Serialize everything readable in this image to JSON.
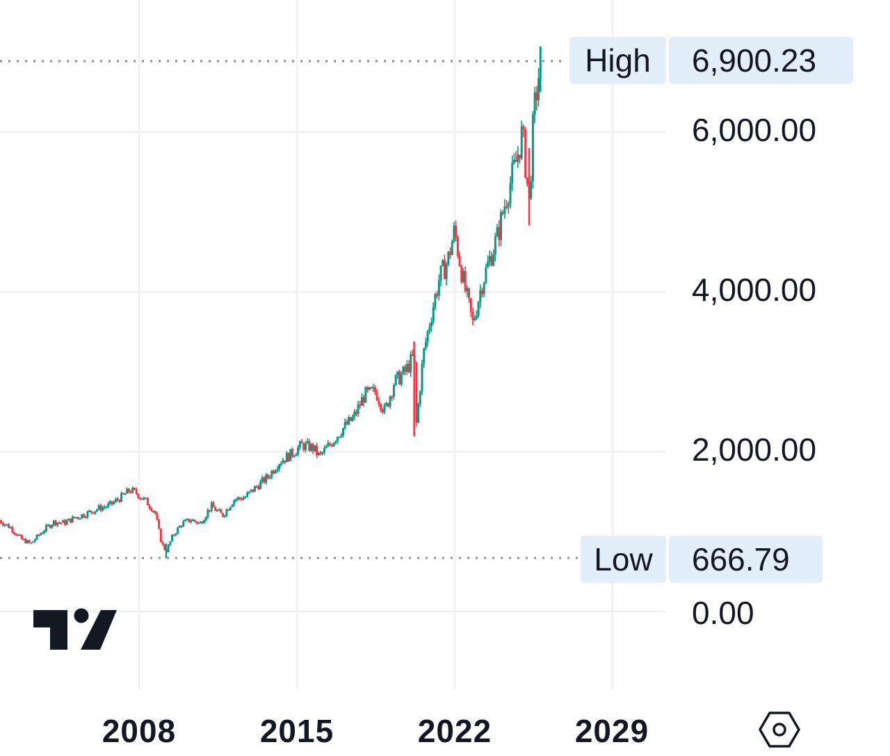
{
  "chart_data": {
    "type": "candlestick",
    "title": "",
    "xlabel": "",
    "ylabel": "",
    "x_ticks": [
      "2008",
      "2015",
      "2022",
      "2029"
    ],
    "y_ticks": [
      "6,000.00",
      "4,000.00",
      "2,000.00",
      "0.00"
    ],
    "ylim": [
      0,
      6900.23
    ],
    "xlim": [
      2001.8,
      2031
    ],
    "grid": true,
    "legend": null,
    "annotations": {
      "high": {
        "label": "High",
        "value": "6,900.23"
      },
      "low": {
        "label": "Low",
        "value": "666.79"
      }
    },
    "up_color": "#089981",
    "down_color": "#f23645",
    "series": [
      {
        "name": "close",
        "x": [
          2001.8,
          2002.3,
          2002.8,
          2003.2,
          2003.7,
          2004.2,
          2004.7,
          2005.2,
          2005.7,
          2006.2,
          2006.7,
          2007.2,
          2007.6,
          2007.9,
          2008.3,
          2008.7,
          2009.0,
          2009.2,
          2009.5,
          2009.9,
          2010.3,
          2010.7,
          2011.2,
          2011.7,
          2012.2,
          2012.7,
          2013.2,
          2013.7,
          2014.2,
          2014.7,
          2015.2,
          2015.7,
          2016.0,
          2016.5,
          2017.0,
          2017.5,
          2018.0,
          2018.5,
          2018.9,
          2019.3,
          2019.8,
          2020.2,
          2020.3,
          2020.6,
          2020.9,
          2021.3,
          2021.7,
          2021.99,
          2022.4,
          2022.8,
          2023.2,
          2023.6,
          2023.9,
          2024.3,
          2024.7,
          2025.0,
          2025.3,
          2025.5,
          2025.8
        ],
        "values": [
          1140,
          1050,
          900,
          850,
          1000,
          1120,
          1110,
          1180,
          1230,
          1290,
          1330,
          1430,
          1520,
          1480,
          1380,
          1250,
          850,
          750,
          950,
          1100,
          1150,
          1100,
          1320,
          1200,
          1400,
          1430,
          1560,
          1680,
          1870,
          1960,
          2080,
          2050,
          1940,
          2100,
          2280,
          2420,
          2710,
          2750,
          2500,
          2860,
          3000,
          3200,
          2350,
          3200,
          3640,
          4150,
          4400,
          4770,
          4100,
          3600,
          4100,
          4450,
          4700,
          5200,
          5600,
          6000,
          5100,
          6200,
          6900
        ]
      }
    ]
  },
  "labels": {
    "high_label": "High",
    "high_value": "6,900.23",
    "low_label": "Low",
    "low_value": "666.79",
    "y_ticks": [
      "6,000.00",
      "4,000.00",
      "2,000.00",
      "0.00"
    ],
    "x_ticks": [
      "2008",
      "2015",
      "2022",
      "2029"
    ]
  },
  "logo": "tradingview-logo",
  "settings_icon": "hexagon-settings-icon"
}
